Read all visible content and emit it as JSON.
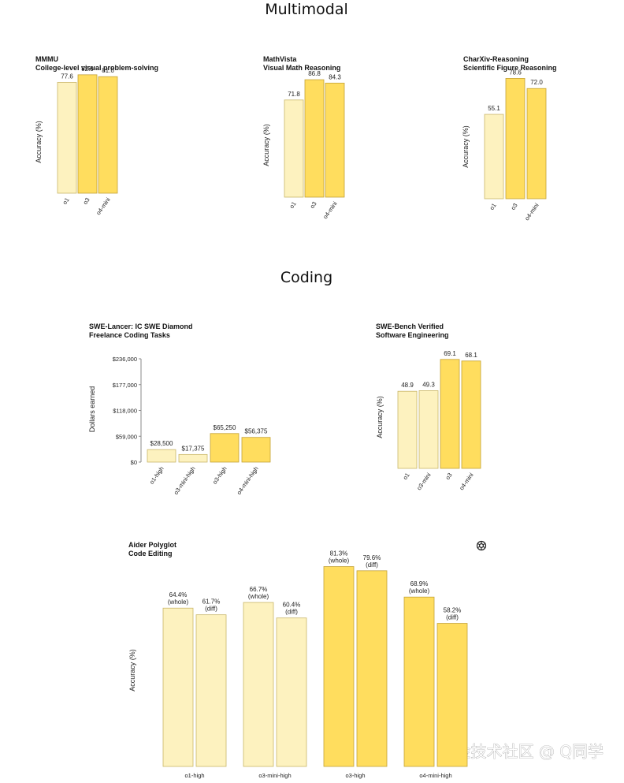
{
  "sections": {
    "multimodal": "Multimodal",
    "coding": "Coding"
  },
  "colors": {
    "light": "#fdf2bf",
    "light_edge": "#c9b66a",
    "dark": "#ffdd5e",
    "dark_edge": "#c4a236",
    "axis": "#888888"
  },
  "logo_icon": "openai-logo-icon",
  "watermark": "掘金技术社区 @ Q同学",
  "chart_data": [
    {
      "id": "mmmu",
      "type": "bar",
      "title": "MMMU",
      "subtitle": "College-level visual problem-solving",
      "ylabel": "Accuracy (%)",
      "categories": [
        "o1",
        "o3",
        "o4-mini"
      ],
      "values": [
        77.6,
        82.9,
        81.6
      ],
      "value_labels": [
        "77.6",
        "82.9",
        "81.6"
      ],
      "shades": [
        "light",
        "dark",
        "dark"
      ],
      "ylim": [
        0,
        90
      ]
    },
    {
      "id": "mathvista",
      "type": "bar",
      "title": "MathVista",
      "subtitle": "Visual Math Reasoning",
      "ylabel": "Accuracy (%)",
      "categories": [
        "o1",
        "o3",
        "o4-mini"
      ],
      "values": [
        71.8,
        86.8,
        84.3
      ],
      "value_labels": [
        "71.8",
        "86.8",
        "84.3"
      ],
      "shades": [
        "light",
        "dark",
        "dark"
      ],
      "ylim": [
        0,
        95
      ]
    },
    {
      "id": "charxiv",
      "type": "bar",
      "title": "CharXiv-Reasoning",
      "subtitle": "Scientific Figure Reasoning",
      "ylabel": "Accuracy (%)",
      "categories": [
        "o1",
        "o3",
        "o4-mini"
      ],
      "values": [
        55.1,
        78.6,
        72.0
      ],
      "value_labels": [
        "55.1",
        "78.6",
        "72.0"
      ],
      "shades": [
        "light",
        "dark",
        "dark"
      ],
      "ylim": [
        0,
        85
      ]
    },
    {
      "id": "swelancer",
      "type": "bar",
      "title": "SWE-Lancer: IC SWE Diamond",
      "subtitle": "Freelance Coding Tasks",
      "ylabel": "Dollars earned",
      "categories": [
        "o1-high",
        "o3-mini-high",
        "o3-high",
        "o4-mini-high"
      ],
      "values": [
        28500,
        17375,
        65250,
        56375
      ],
      "value_labels": [
        "$28,500",
        "$17,375",
        "$65,250",
        "$56,375"
      ],
      "shades": [
        "light",
        "light",
        "dark",
        "dark"
      ],
      "ylim": [
        0,
        236000
      ],
      "yticks": [
        0,
        59000,
        118000,
        177000,
        236000
      ],
      "ytick_labels": [
        "$0",
        "$59,000",
        "$118,000",
        "$177,000",
        "$236,000"
      ]
    },
    {
      "id": "swebench",
      "type": "bar",
      "title": "SWE-Bench Verified",
      "subtitle": "Software Engineering",
      "ylabel": "Accuracy (%)",
      "categories": [
        "o1",
        "o3-mini",
        "o3",
        "o4-mini"
      ],
      "values": [
        48.9,
        49.3,
        69.1,
        68.1
      ],
      "value_labels": [
        "48.9",
        "49.3",
        "69.1",
        "68.1"
      ],
      "shades": [
        "light",
        "light",
        "dark",
        "dark"
      ],
      "ylim": [
        0,
        75
      ]
    },
    {
      "id": "aider",
      "type": "bar",
      "title": "Aider Polyglot",
      "subtitle": "Code Editing",
      "ylabel": "Accuracy (%)",
      "categories": [
        "o1-high",
        "o3-mini-high",
        "o3-high",
        "o4-mini-high"
      ],
      "series": [
        {
          "name": "(whole)",
          "values": [
            64.4,
            66.7,
            81.3,
            68.9
          ]
        },
        {
          "name": "(diff)",
          "values": [
            61.7,
            60.4,
            79.6,
            58.2
          ]
        }
      ],
      "value_labels": [
        [
          "64.4%",
          "61.7%"
        ],
        [
          "66.7%",
          "60.4%"
        ],
        [
          "81.3%",
          "79.6%"
        ],
        [
          "68.9%",
          "58.2%"
        ]
      ],
      "shades": [
        "light",
        "light",
        "dark",
        "dark"
      ],
      "ylim": [
        0,
        85
      ]
    }
  ]
}
